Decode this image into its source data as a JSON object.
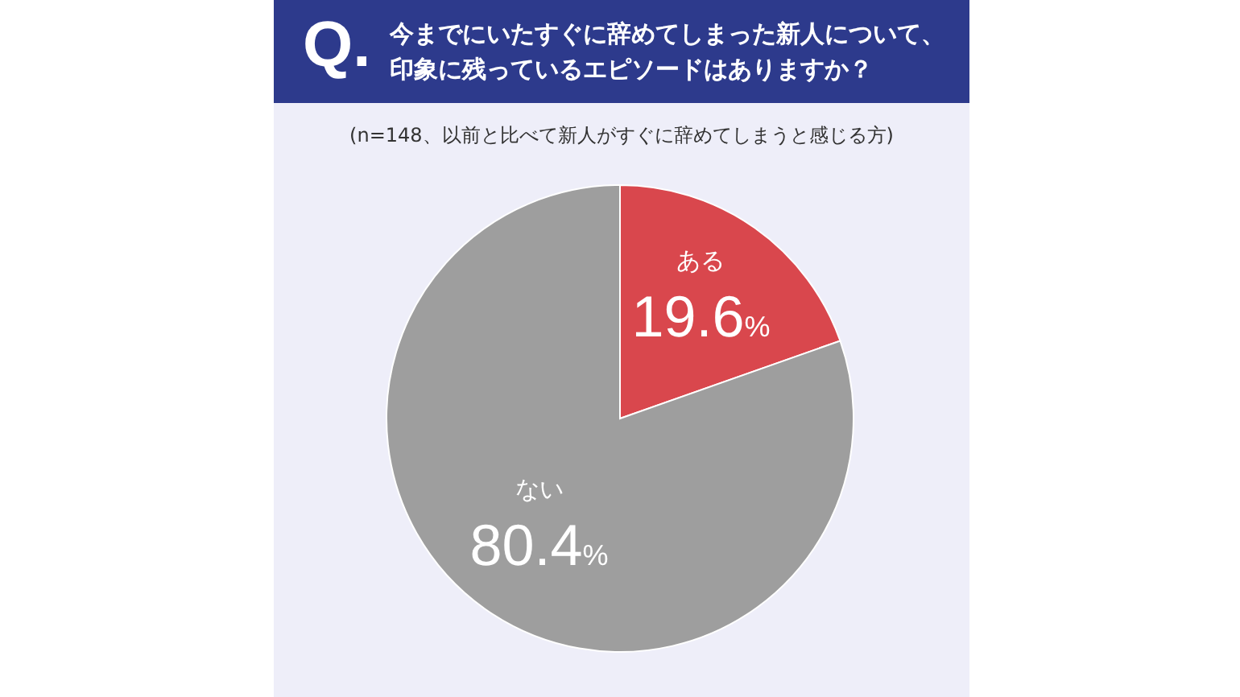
{
  "chart_data": {
    "type": "pie",
    "title": "今までにいたすぐに辞めてしまった新人について、印象に残っているエピソードはありますか？",
    "subtitle": "(n=148、以前と比べて新人がすぐに辞めてしまうと感じる方)",
    "annotations": [
      "Q."
    ],
    "categories": [
      "ある",
      "ない"
    ],
    "values": [
      19.6,
      80.4
    ],
    "colors": [
      "#d9474d",
      "#9e9e9e"
    ],
    "value_labels": [
      "19.6%",
      "80.4%"
    ]
  }
}
